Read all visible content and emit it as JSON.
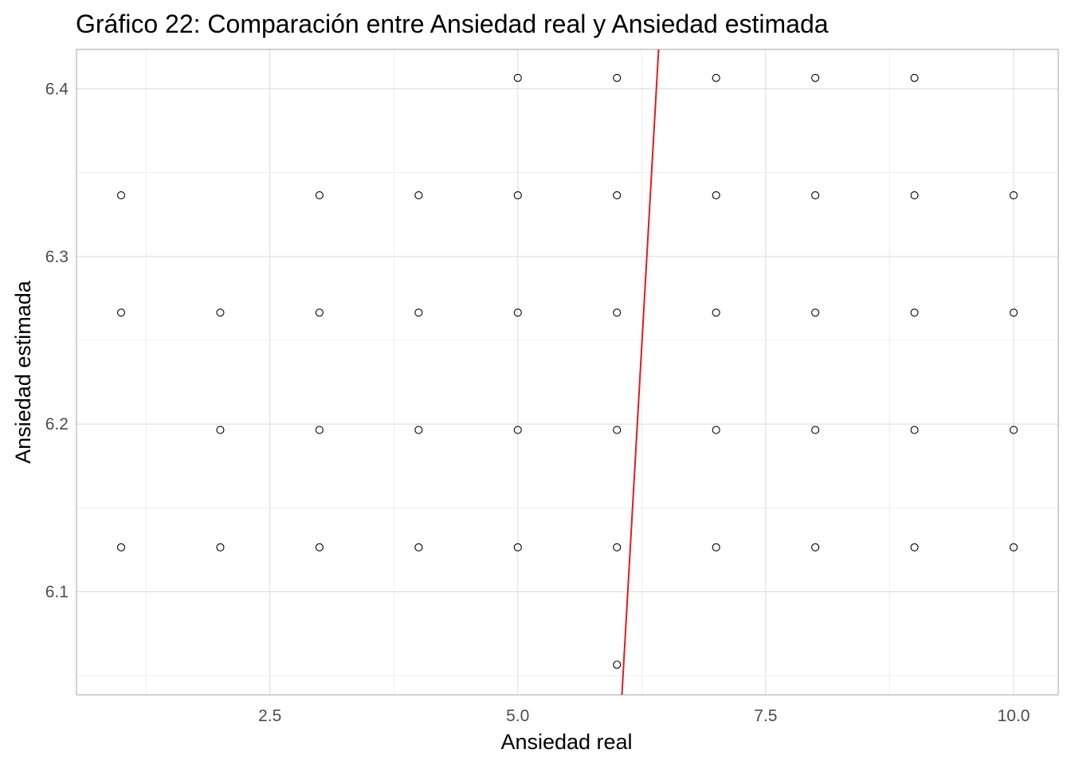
{
  "chart_data": {
    "type": "scatter",
    "title": "Gráfico 22: Comparación entre Ansiedad real y Ansiedad estimada",
    "xlabel": "Ansiedad real",
    "ylabel": "Ansiedad estimada",
    "xlim": [
      0.55,
      10.45
    ],
    "ylim": [
      6.0385,
      6.4235
    ],
    "x_ticks": [
      2.5,
      5.0,
      7.5,
      10.0
    ],
    "x_tick_labels": [
      "2.5",
      "5.0",
      "7.5",
      "10.0"
    ],
    "x_minor_ticks": [
      1.25,
      3.75,
      6.25,
      8.75
    ],
    "y_ticks": [
      6.1,
      6.2,
      6.3,
      6.4
    ],
    "y_tick_labels": [
      "6.1",
      "6.2",
      "6.3",
      "6.4"
    ],
    "y_minor_ticks": [
      6.05,
      6.15,
      6.25,
      6.35
    ],
    "grid": true,
    "point_color": "#000000",
    "line_color": "#e41a1c",
    "reference_line": {
      "x_at_ymin": 6.05,
      "x_at_ymax": 6.42,
      "ymin": 6.0385,
      "ymax": 6.4235
    },
    "points": [
      {
        "x": 5,
        "y": 6.4065
      },
      {
        "x": 6,
        "y": 6.4065
      },
      {
        "x": 7,
        "y": 6.4065
      },
      {
        "x": 8,
        "y": 6.4065
      },
      {
        "x": 9,
        "y": 6.4065
      },
      {
        "x": 1,
        "y": 6.3365
      },
      {
        "x": 3,
        "y": 6.3365
      },
      {
        "x": 4,
        "y": 6.3365
      },
      {
        "x": 5,
        "y": 6.3365
      },
      {
        "x": 6,
        "y": 6.3365
      },
      {
        "x": 7,
        "y": 6.3365
      },
      {
        "x": 8,
        "y": 6.3365
      },
      {
        "x": 9,
        "y": 6.3365
      },
      {
        "x": 10,
        "y": 6.3365
      },
      {
        "x": 1,
        "y": 6.2665
      },
      {
        "x": 2,
        "y": 6.2665
      },
      {
        "x": 3,
        "y": 6.2665
      },
      {
        "x": 4,
        "y": 6.2665
      },
      {
        "x": 5,
        "y": 6.2665
      },
      {
        "x": 6,
        "y": 6.2665
      },
      {
        "x": 7,
        "y": 6.2665
      },
      {
        "x": 8,
        "y": 6.2665
      },
      {
        "x": 9,
        "y": 6.2665
      },
      {
        "x": 10,
        "y": 6.2665
      },
      {
        "x": 2,
        "y": 6.1965
      },
      {
        "x": 3,
        "y": 6.1965
      },
      {
        "x": 4,
        "y": 6.1965
      },
      {
        "x": 5,
        "y": 6.1965
      },
      {
        "x": 6,
        "y": 6.1965
      },
      {
        "x": 7,
        "y": 6.1965
      },
      {
        "x": 8,
        "y": 6.1965
      },
      {
        "x": 9,
        "y": 6.1965
      },
      {
        "x": 10,
        "y": 6.1965
      },
      {
        "x": 1,
        "y": 6.1265
      },
      {
        "x": 2,
        "y": 6.1265
      },
      {
        "x": 3,
        "y": 6.1265
      },
      {
        "x": 4,
        "y": 6.1265
      },
      {
        "x": 5,
        "y": 6.1265
      },
      {
        "x": 6,
        "y": 6.1265
      },
      {
        "x": 7,
        "y": 6.1265
      },
      {
        "x": 8,
        "y": 6.1265
      },
      {
        "x": 9,
        "y": 6.1265
      },
      {
        "x": 10,
        "y": 6.1265
      },
      {
        "x": 6,
        "y": 6.0565
      }
    ]
  }
}
